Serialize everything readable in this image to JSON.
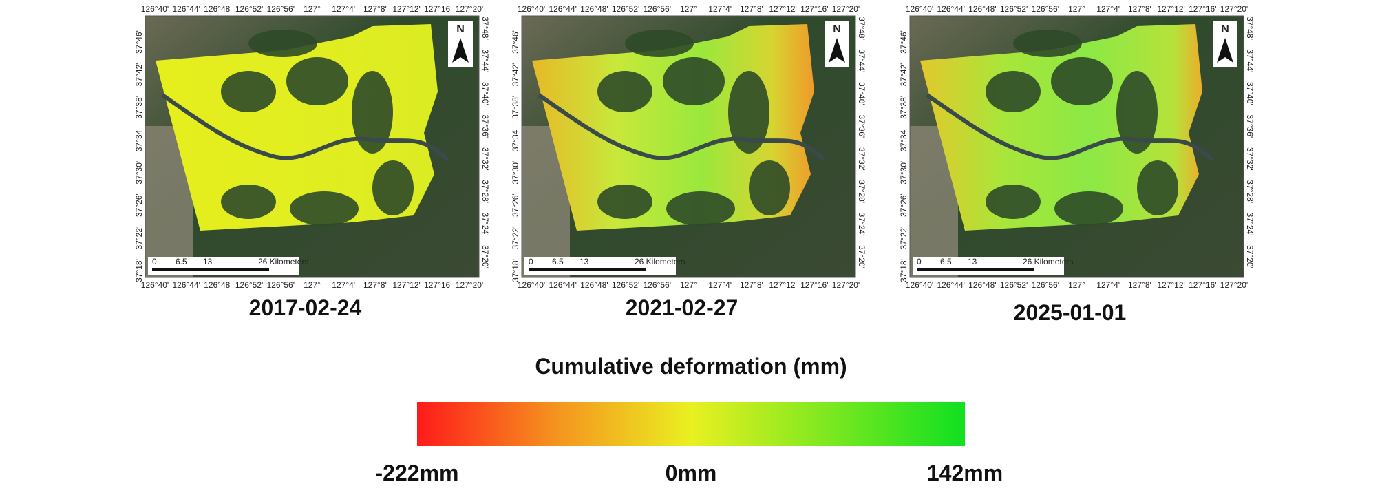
{
  "panels": [
    {
      "date": "2017-02-24"
    },
    {
      "date": "2021-02-27"
    },
    {
      "date": "2025-01-01"
    }
  ],
  "lon_ticks": [
    "126°40'",
    "126°44'",
    "126°48'",
    "126°52'",
    "126°56'",
    "127°",
    "127°4'",
    "127°8'",
    "127°12'",
    "127°16'",
    "127°20'"
  ],
  "lat_ticks_left": [
    "37°46'",
    "37°42'",
    "37°38'",
    "37°34'",
    "37°30'",
    "37°26'",
    "37°22'",
    "37°18'"
  ],
  "lat_ticks_right": [
    "37°48'",
    "37°44'",
    "37°40'",
    "37°36'",
    "37°32'",
    "37°28'",
    "37°24'",
    "37°20'"
  ],
  "scale_bar": [
    "0",
    "6.5",
    "13",
    "26 Kilometers"
  ],
  "north_label": "N",
  "legend": {
    "title": "Cumulative deformation (mm)",
    "min_label": "-222mm",
    "mid_label": "0mm",
    "max_label": "142mm"
  }
}
